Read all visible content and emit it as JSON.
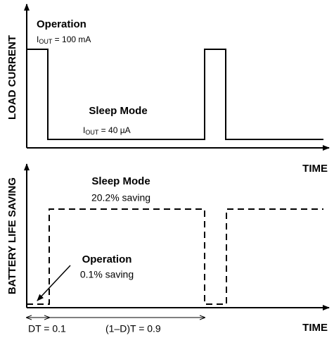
{
  "top": {
    "axis_label": "LOAD CURRENT",
    "time_label": "TIME",
    "operation": {
      "title": "Operation",
      "symbol": "I",
      "subscript": "OUT",
      "value": " = 100 mA"
    },
    "sleep": {
      "title": "Sleep Mode",
      "symbol": "I",
      "subscript": "OUT",
      "value": " = 40 µA"
    }
  },
  "bottom": {
    "axis_label": "BATTERY LIFE SAVING",
    "time_label": "TIME",
    "sleep": {
      "title": "Sleep Mode",
      "saving": "20.2% saving"
    },
    "operation": {
      "title": "Operation",
      "saving": "0.1% saving"
    },
    "dt_label": "DT = 0.1",
    "rest_label": "(1–D)T = 0.9"
  }
}
